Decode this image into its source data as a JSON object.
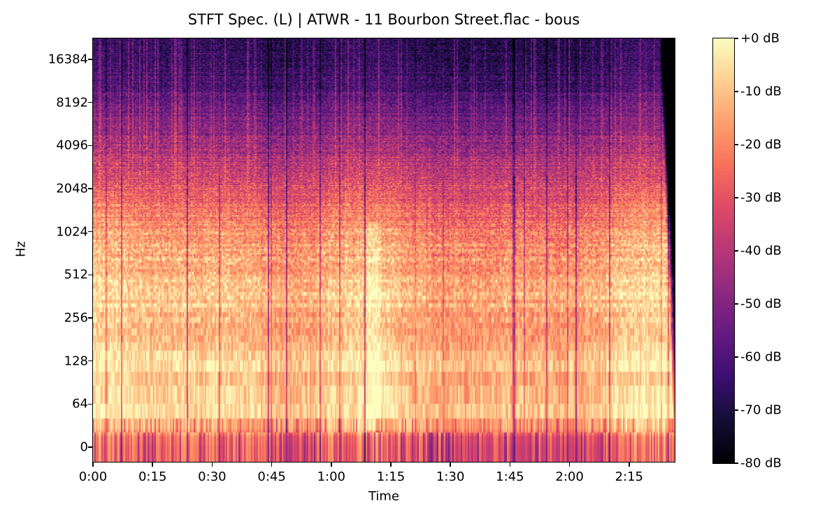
{
  "figure": {
    "title": "STFT Spec. (L) | ATWR - 11 Bourbon Street.flac - bous",
    "background_color": "#ffffff",
    "axes_edge_color": "#000000"
  },
  "chart_data": {
    "type": "heatmap",
    "subtype": "stft_spectrogram",
    "title": "STFT Spec. (L) | ATWR - 11 Bourbon Street.flac - bous",
    "xlabel": "Time",
    "ylabel": "Hz",
    "x_tick_labels": [
      "0:00",
      "0:15",
      "0:30",
      "0:45",
      "1:00",
      "1:15",
      "1:30",
      "1:45",
      "2:00",
      "2:15"
    ],
    "x_tick_seconds": [
      0,
      15,
      30,
      45,
      60,
      75,
      90,
      105,
      120,
      135
    ],
    "duration_seconds": 146.5,
    "y_scale": "log",
    "y_tick_labels": [
      "16384",
      "8192",
      "4096",
      "2048",
      "1024",
      "512",
      "256",
      "128",
      "64",
      "0"
    ],
    "y_tick_hz": [
      16384,
      8192,
      4096,
      2048,
      1024,
      512,
      256,
      128,
      64,
      0
    ],
    "freq_top_hz": 22050,
    "fft_bin_hz": 21.533,
    "grid": false,
    "colorbar": {
      "tick_labels": [
        "+0 dB",
        "-10 dB",
        "-20 dB",
        "-30 dB",
        "-40 dB",
        "-50 dB",
        "-60 dB",
        "-70 dB",
        "-80 dB"
      ],
      "tick_values_db": [
        0,
        -10,
        -20,
        -30,
        -40,
        -50,
        -60,
        -70,
        -80
      ],
      "vmax_db": 0,
      "vmin_db": -80,
      "colormap": "magma",
      "stops": [
        [
          0,
          "#000004"
        ],
        [
          0.1,
          "#140e36"
        ],
        [
          0.2,
          "#3b0f70"
        ],
        [
          0.3,
          "#641a80"
        ],
        [
          0.4,
          "#8c2981"
        ],
        [
          0.5,
          "#b73779"
        ],
        [
          0.6,
          "#de4968"
        ],
        [
          0.7,
          "#f7705c"
        ],
        [
          0.8,
          "#fe9f6d"
        ],
        [
          0.9,
          "#fecf92"
        ],
        [
          1,
          "#fcfdbf"
        ]
      ]
    },
    "level_profile_db": [
      [
        1,
        -26
      ],
      [
        15,
        -24
      ],
      [
        28,
        -11
      ],
      [
        80,
        -9
      ],
      [
        200,
        -11
      ],
      [
        500,
        -13
      ],
      [
        900,
        -18
      ],
      [
        1400,
        -25
      ],
      [
        2500,
        -35
      ],
      [
        4200,
        -46
      ],
      [
        8000,
        -57
      ],
      [
        12000,
        -64
      ],
      [
        22050,
        -68
      ]
    ],
    "events": [
      {
        "t_start_s": 69,
        "t_end_s": 72.5,
        "f_lo_hz": 25,
        "f_hi_hz": 1200,
        "boost_db": 7
      }
    ],
    "fade_out_start_s": 142.8
  }
}
